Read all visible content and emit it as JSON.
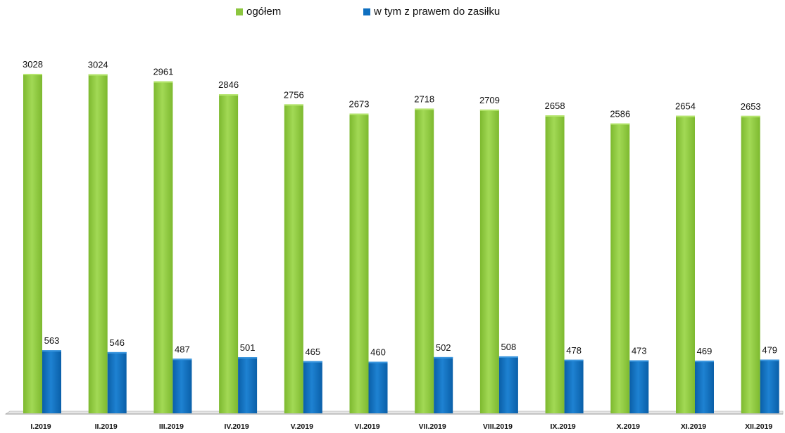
{
  "chart_data": {
    "type": "bar",
    "title": "",
    "xlabel": "",
    "ylabel": "",
    "ylim": [
      0,
      3100
    ],
    "legend": "top-center",
    "categories": [
      "I.2019",
      "II.2019",
      "III.2019",
      "IV.2019",
      "V.2019",
      "VI.2019",
      "VII.2019",
      "VIII.2019",
      "IX.2019",
      "X.2019",
      "XI.2019",
      "XII.2019"
    ],
    "series": [
      {
        "name": "ogółem",
        "color": "#8CC63F",
        "values": [
          3028,
          3024,
          2961,
          2846,
          2756,
          2673,
          2718,
          2709,
          2658,
          2586,
          2654,
          2653
        ]
      },
      {
        "name": "w tym z prawem do zasiłku",
        "color": "#0E6FC0",
        "values": [
          563,
          546,
          487,
          501,
          465,
          460,
          502,
          508,
          478,
          473,
          469,
          479
        ]
      }
    ],
    "grid": false
  }
}
